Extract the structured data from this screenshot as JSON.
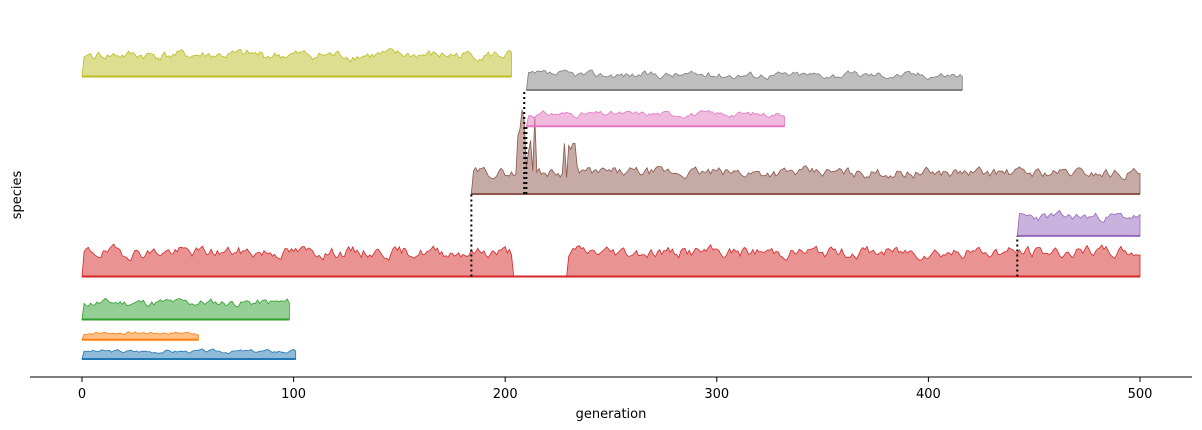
{
  "chart_data": {
    "type": "area",
    "title": "",
    "xlabel": "generation",
    "ylabel": "species",
    "xlim": [
      -25,
      525
    ],
    "xticks": [
      0,
      100,
      200,
      300,
      400,
      500
    ],
    "grid": false,
    "legend": "none",
    "series": [
      {
        "color": "#1f77b4",
        "start": 0,
        "end": 101,
        "level": 0,
        "height": 0.5,
        "seed": 3
      },
      {
        "color": "#ff7f0e",
        "start": 0,
        "end": 55,
        "level": 0.85,
        "height": 0.45,
        "seed": 7
      },
      {
        "color": "#2ca02c",
        "start": 0,
        "end": 98,
        "level": 1.75,
        "height": 1.1,
        "seed": 11
      },
      {
        "color": "#d62728",
        "start": 0,
        "end": 500,
        "level": 3.65,
        "height": 1.6,
        "seed": 19,
        "gaps": [
          [
            203,
            230
          ]
        ]
      },
      {
        "color": "#9467bd",
        "start": 442,
        "end": 500,
        "level": 5.45,
        "height": 1.25,
        "seed": 23
      },
      {
        "color": "#8c564b",
        "start": 184,
        "end": 500,
        "level": 7.3,
        "height": 1.4,
        "seed": 29,
        "spikes": [
          [
            206,
            214,
            2.9
          ],
          [
            228,
            234,
            1.6
          ]
        ]
      },
      {
        "color": "#e377c2",
        "start": 210,
        "end": 332,
        "level": 10.3,
        "height": 0.8,
        "seed": 31
      },
      {
        "color": "#7f7f7f",
        "start": 210,
        "end": 416,
        "level": 11.9,
        "height": 1.0,
        "seed": 37
      },
      {
        "color": "#bcbd22",
        "start": 0,
        "end": 203,
        "level": 12.5,
        "height": 1.4,
        "seed": 41
      }
    ],
    "branches": [
      {
        "x": 184,
        "from_level": 3.65,
        "to_level": 7.3
      },
      {
        "x": 209,
        "from_level": 7.3,
        "to_level": 11.9
      },
      {
        "x": 210,
        "from_level": 7.3,
        "to_level": 10.3
      },
      {
        "x": 442,
        "from_level": 3.65,
        "to_level": 5.45
      }
    ]
  }
}
